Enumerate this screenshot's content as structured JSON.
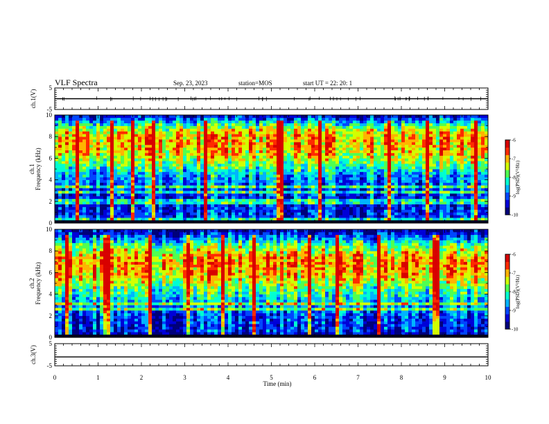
{
  "header": {
    "title": "VLF Spectra",
    "date": "Sep. 23, 2023",
    "station": "station=MOS",
    "start_ut": "start  UT  =   22: 20: 1"
  },
  "colors": {
    "spectrogram_ramp": [
      "#00007a",
      "#0000d8",
      "#0046ff",
      "#00b4ff",
      "#00ffd2",
      "#50ff50",
      "#d2ff00",
      "#ffb400",
      "#ff2a00",
      "#d80000"
    ],
    "trace": "#000000"
  },
  "chart_data": [
    {
      "type": "line",
      "name": "ch1-voltage",
      "ylabel": "ch.1(V)",
      "ylim": [
        -5,
        5
      ],
      "yticks": [
        "5",
        "-5"
      ],
      "x": [
        0,
        10
      ],
      "y": [
        0,
        0
      ],
      "note_texture": "small spikes along zero line"
    },
    {
      "type": "heatmap",
      "name": "ch1-spectrogram",
      "ylabel_line1": "ch.1",
      "ylabel_line2": "Frequency (kHz)",
      "ylim": [
        0,
        10
      ],
      "yticks": [
        "0",
        "2",
        "4",
        "6",
        "8",
        "10"
      ],
      "xlim": [
        0,
        10
      ],
      "colorbar_label": "log(PSD)(V²/Hz)",
      "colorbar_range": [
        -10,
        -6
      ],
      "colorbar_ticks": [
        "-6",
        "-7",
        "-8",
        "-9",
        "-10"
      ],
      "band_profile_khz": [
        {
          "f": 0.0,
          "v": -10.0
        },
        {
          "f": 0.5,
          "v": -9.1
        },
        {
          "f": 1.5,
          "v": -9.3
        },
        {
          "f": 2.5,
          "v": -9.2
        },
        {
          "f": 3.5,
          "v": -9.0
        },
        {
          "f": 4.5,
          "v": -8.6
        },
        {
          "f": 5.5,
          "v": -7.8
        },
        {
          "f": 6.5,
          "v": -7.2
        },
        {
          "f": 7.5,
          "v": -7.0
        },
        {
          "f": 8.5,
          "v": -7.2
        },
        {
          "f": 9.3,
          "v": -8.4
        },
        {
          "f": 10.0,
          "v": -9.6
        }
      ],
      "bright_line_freqs_khz": [
        0.3,
        2.0,
        2.8,
        3.3
      ],
      "impulse_times_min": [
        0.5,
        1.3,
        1.8,
        2.3,
        3.5,
        5.2,
        6.1,
        7.7,
        8.6,
        9.7
      ]
    },
    {
      "type": "heatmap",
      "name": "ch2-spectrogram",
      "ylabel_line1": "ch.2",
      "ylabel_line2": "Frequency (kHz)",
      "ylim": [
        0,
        10
      ],
      "yticks": [
        "0",
        "2",
        "4",
        "6",
        "8",
        "10"
      ],
      "xlim": [
        0,
        10
      ],
      "colorbar_label": "log(PSD)(V²/Hz)",
      "colorbar_range": [
        -10,
        -6
      ],
      "colorbar_ticks": [
        "-6",
        "-7",
        "-8",
        "-9",
        "-10"
      ],
      "band_profile_khz": [
        {
          "f": 0.0,
          "v": -10.0
        },
        {
          "f": 0.5,
          "v": -9.3
        },
        {
          "f": 1.5,
          "v": -9.2
        },
        {
          "f": 2.5,
          "v": -8.9
        },
        {
          "f": 3.5,
          "v": -8.4
        },
        {
          "f": 4.5,
          "v": -7.9
        },
        {
          "f": 5.5,
          "v": -7.2
        },
        {
          "f": 6.5,
          "v": -6.9
        },
        {
          "f": 7.5,
          "v": -7.0
        },
        {
          "f": 8.5,
          "v": -7.8
        },
        {
          "f": 9.3,
          "v": -8.9
        },
        {
          "f": 10.0,
          "v": -9.8
        }
      ],
      "bright_line_freqs_khz": [
        2.6,
        3.1
      ],
      "impulse_times_min": [
        0.3,
        1.2,
        2.2,
        3.1,
        3.9,
        4.6,
        5.9,
        6.5,
        7.5,
        8.8
      ]
    },
    {
      "type": "line",
      "name": "ch3-voltage",
      "ylabel": "ch.3(V)",
      "ylim": [
        -5,
        5
      ],
      "yticks": [
        "5",
        "-5"
      ],
      "x": [
        0,
        10
      ],
      "y": [
        -1,
        -1
      ]
    }
  ],
  "xaxis": {
    "label": "Time (min)",
    "xlim": [
      0,
      10
    ],
    "ticks": [
      "0",
      "1",
      "2",
      "3",
      "4",
      "5",
      "6",
      "7",
      "8",
      "9",
      "10"
    ]
  }
}
